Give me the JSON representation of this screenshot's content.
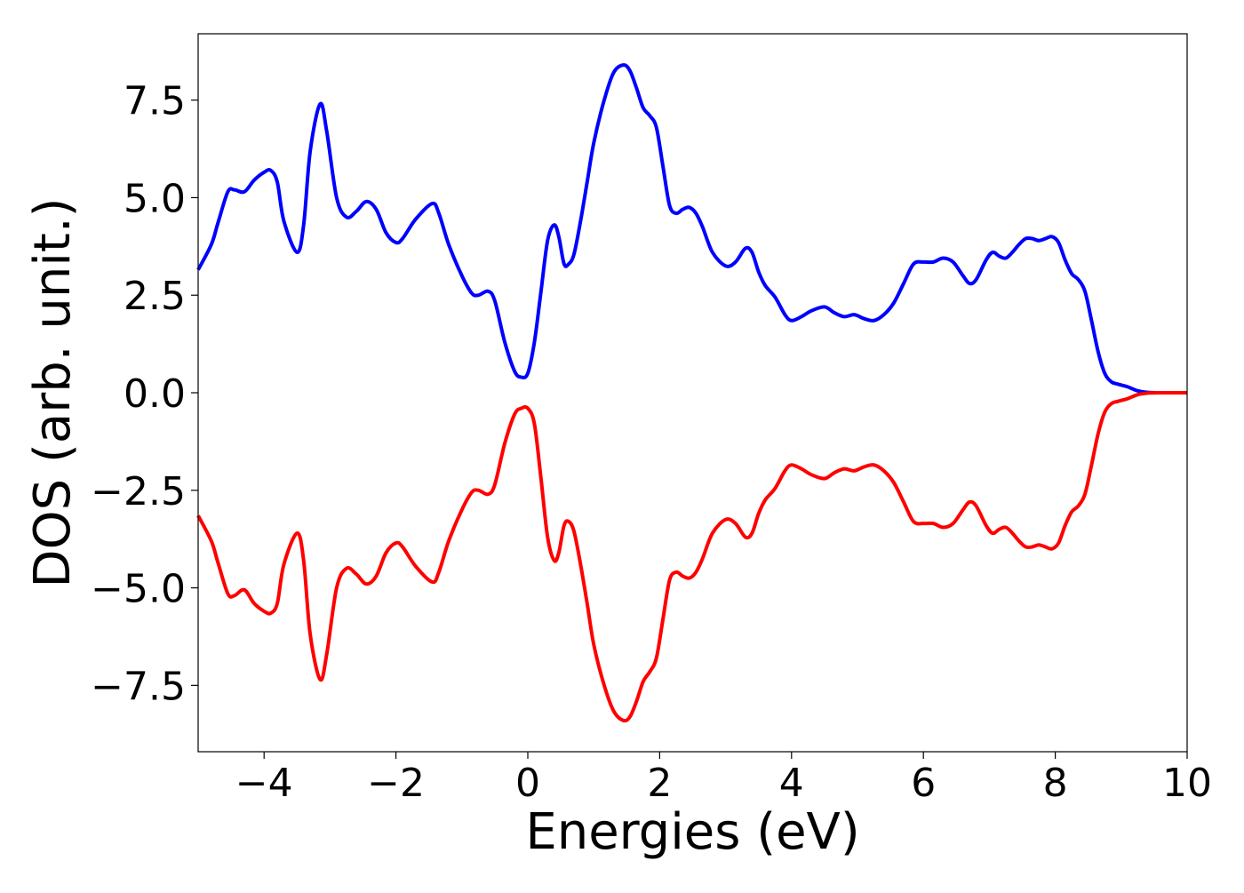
{
  "chart_data": {
    "type": "line",
    "xlabel": "Energies (eV)",
    "ylabel": "DOS (arb. unit.)",
    "xlim": [
      -5,
      10
    ],
    "ylim": [
      -9.2,
      9.2
    ],
    "xticks": [
      -4,
      -2,
      0,
      2,
      4,
      6,
      8,
      10
    ],
    "xtick_labels": [
      "−4",
      "−2",
      "0",
      "2",
      "4",
      "6",
      "8",
      "10"
    ],
    "yticks": [
      -7.5,
      -5.0,
      -2.5,
      0.0,
      2.5,
      5.0,
      7.5
    ],
    "ytick_labels": [
      "−7.5",
      "−5.0",
      "−2.5",
      "0.0",
      "2.5",
      "5.0",
      "7.5"
    ],
    "grid": false,
    "legend": "none",
    "x": [
      -5.0,
      -4.8,
      -4.7,
      -4.55,
      -4.45,
      -4.3,
      -4.15,
      -4.0,
      -3.9,
      -3.8,
      -3.7,
      -3.5,
      -3.4,
      -3.3,
      -3.15,
      -3.05,
      -2.9,
      -2.75,
      -2.6,
      -2.45,
      -2.3,
      -2.15,
      -2.0,
      -1.9,
      -1.7,
      -1.45,
      -1.35,
      -1.2,
      -1.0,
      -0.85,
      -0.75,
      -0.6,
      -0.5,
      -0.35,
      -0.2,
      -0.1,
      0.0,
      0.1,
      0.2,
      0.3,
      0.4,
      0.47,
      0.55,
      0.62,
      0.7,
      0.8,
      0.9,
      1.0,
      1.15,
      1.3,
      1.45,
      1.55,
      1.65,
      1.75,
      1.85,
      1.95,
      2.05,
      2.15,
      2.25,
      2.35,
      2.45,
      2.55,
      2.65,
      2.8,
      3.0,
      3.15,
      3.3,
      3.4,
      3.5,
      3.6,
      3.75,
      3.9,
      4.0,
      4.15,
      4.3,
      4.5,
      4.65,
      4.8,
      4.95,
      5.1,
      5.25,
      5.4,
      5.55,
      5.7,
      5.85,
      6.0,
      6.15,
      6.3,
      6.45,
      6.6,
      6.7,
      6.8,
      6.95,
      7.05,
      7.15,
      7.25,
      7.35,
      7.45,
      7.55,
      7.65,
      7.75,
      7.85,
      7.95,
      8.05,
      8.15,
      8.25,
      8.35,
      8.45,
      8.55,
      8.65,
      8.75,
      8.85,
      8.95,
      9.1,
      9.25,
      9.4,
      9.6,
      9.8,
      10.0
    ],
    "series": [
      {
        "color": "#0000ff",
        "values": [
          3.15,
          3.8,
          4.35,
          5.15,
          5.2,
          5.15,
          5.45,
          5.65,
          5.7,
          5.4,
          4.4,
          3.6,
          4.3,
          6.2,
          7.4,
          6.7,
          5.0,
          4.5,
          4.65,
          4.9,
          4.7,
          4.1,
          3.85,
          3.95,
          4.45,
          4.85,
          4.6,
          3.8,
          3.0,
          2.55,
          2.5,
          2.6,
          2.35,
          1.3,
          0.55,
          0.4,
          0.5,
          1.3,
          2.6,
          3.9,
          4.3,
          4.0,
          3.3,
          3.3,
          3.55,
          4.4,
          5.4,
          6.4,
          7.45,
          8.2,
          8.4,
          8.25,
          7.8,
          7.3,
          7.1,
          6.8,
          5.8,
          4.8,
          4.6,
          4.7,
          4.75,
          4.6,
          4.25,
          3.6,
          3.25,
          3.35,
          3.7,
          3.6,
          3.1,
          2.75,
          2.45,
          2.0,
          1.85,
          1.95,
          2.1,
          2.2,
          2.05,
          1.95,
          2.0,
          1.9,
          1.85,
          2.0,
          2.3,
          2.8,
          3.3,
          3.35,
          3.35,
          3.45,
          3.35,
          3.0,
          2.8,
          2.9,
          3.4,
          3.6,
          3.5,
          3.45,
          3.6,
          3.8,
          3.95,
          3.95,
          3.9,
          3.95,
          4.0,
          3.85,
          3.4,
          3.05,
          2.9,
          2.6,
          1.85,
          1.05,
          0.5,
          0.28,
          0.22,
          0.15,
          0.05,
          0.01,
          0.0,
          0.0,
          0.0
        ]
      },
      {
        "color": "#ff0000",
        "values": [
          -3.15,
          -3.8,
          -4.35,
          -5.15,
          -5.2,
          -5.05,
          -5.4,
          -5.6,
          -5.65,
          -5.4,
          -4.4,
          -3.6,
          -4.3,
          -6.2,
          -7.35,
          -6.7,
          -5.0,
          -4.5,
          -4.65,
          -4.9,
          -4.7,
          -4.1,
          -3.85,
          -3.95,
          -4.45,
          -4.85,
          -4.6,
          -3.8,
          -3.0,
          -2.55,
          -2.5,
          -2.6,
          -2.35,
          -1.3,
          -0.55,
          -0.4,
          -0.4,
          -0.8,
          -2.2,
          -3.7,
          -4.3,
          -4.1,
          -3.4,
          -3.3,
          -3.55,
          -4.4,
          -5.4,
          -6.45,
          -7.45,
          -8.15,
          -8.4,
          -8.3,
          -7.9,
          -7.4,
          -7.15,
          -6.8,
          -5.8,
          -4.8,
          -4.6,
          -4.7,
          -4.75,
          -4.6,
          -4.25,
          -3.6,
          -3.25,
          -3.35,
          -3.7,
          -3.6,
          -3.1,
          -2.75,
          -2.45,
          -2.0,
          -1.85,
          -1.95,
          -2.1,
          -2.2,
          -2.05,
          -1.95,
          -2.0,
          -1.9,
          -1.85,
          -2.0,
          -2.3,
          -2.8,
          -3.3,
          -3.35,
          -3.35,
          -3.45,
          -3.35,
          -3.0,
          -2.8,
          -2.9,
          -3.4,
          -3.6,
          -3.5,
          -3.45,
          -3.6,
          -3.8,
          -3.95,
          -3.95,
          -3.9,
          -3.95,
          -4.0,
          -3.85,
          -3.4,
          -3.05,
          -2.9,
          -2.6,
          -1.85,
          -1.05,
          -0.5,
          -0.28,
          -0.22,
          -0.15,
          -0.05,
          -0.01,
          0.0,
          0.0,
          0.0
        ]
      }
    ]
  }
}
